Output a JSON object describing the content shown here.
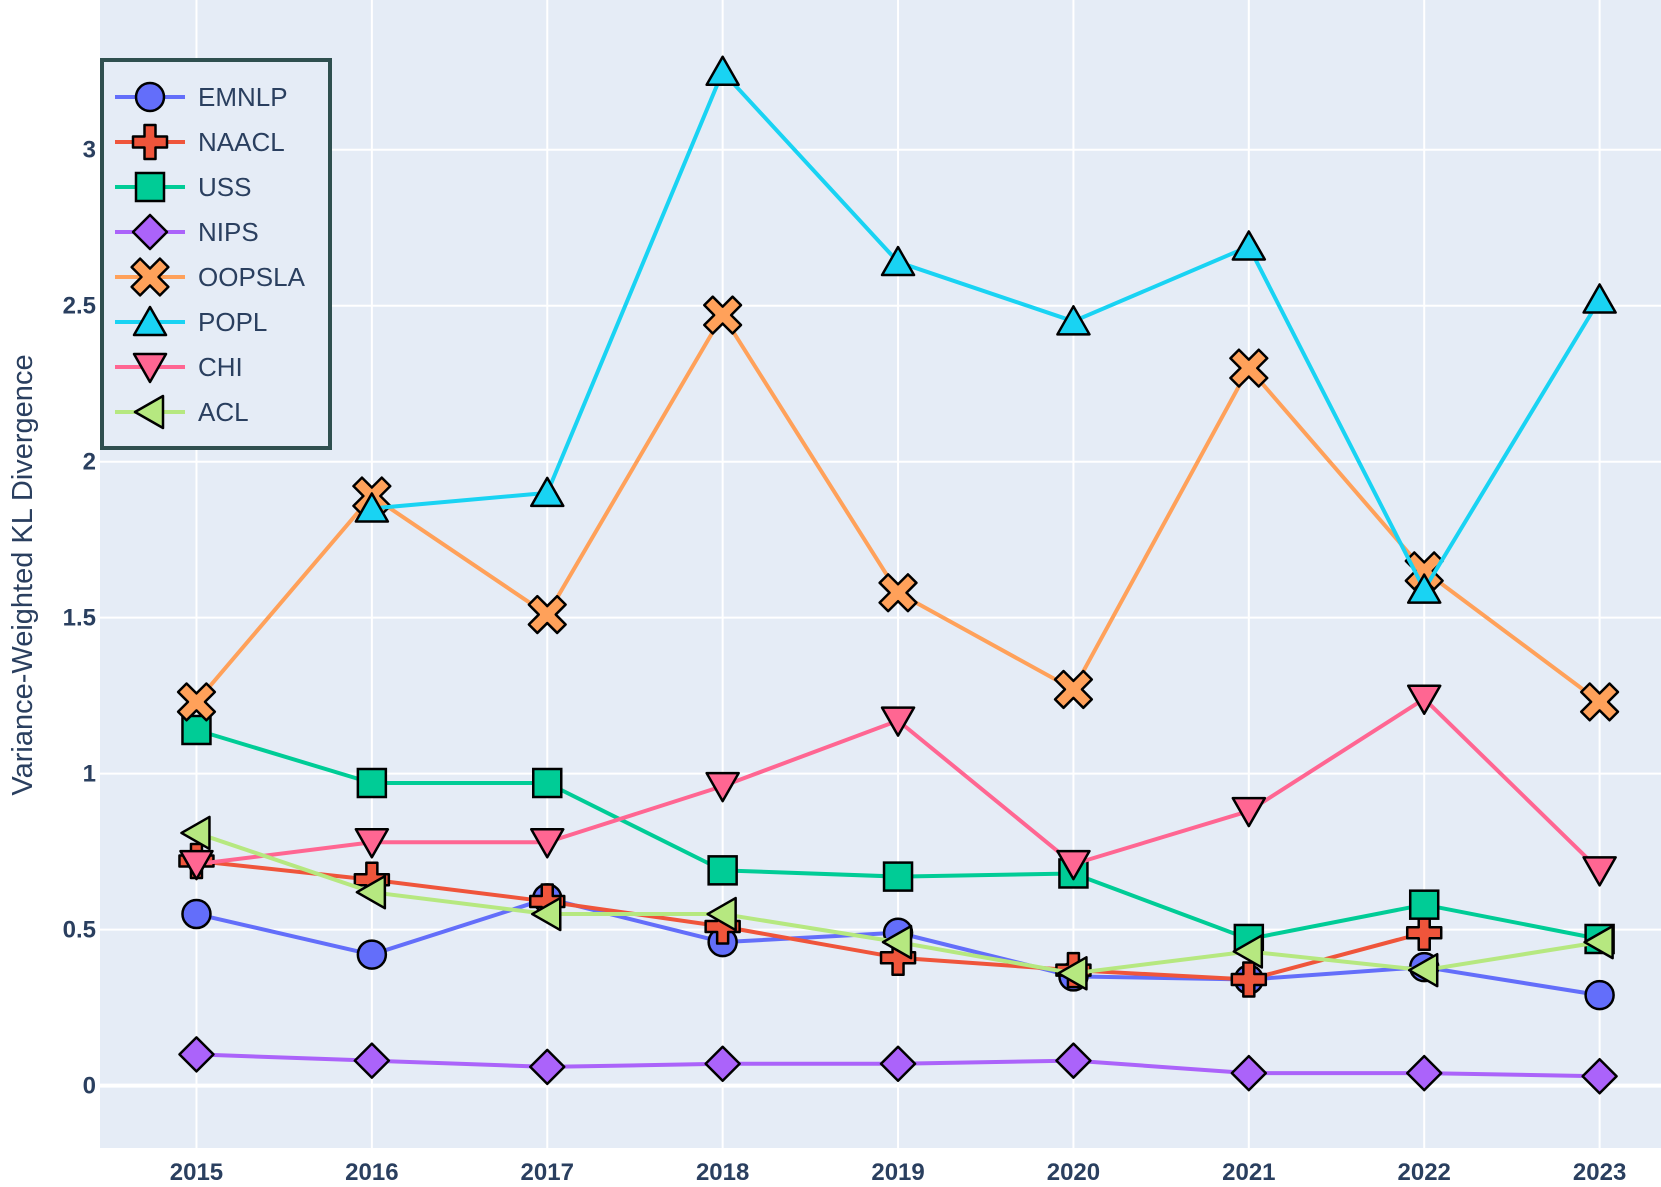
{
  "chart_data": {
    "type": "line",
    "title": "",
    "xlabel": "",
    "ylabel": "Variance-Weighted KL Divergence",
    "x": [
      2015,
      2016,
      2017,
      2018,
      2019,
      2020,
      2021,
      2022,
      2023
    ],
    "x_tick_labels": [
      "2015",
      "2016",
      "2017",
      "2018",
      "2019",
      "2020",
      "2021",
      "2022",
      "2023"
    ],
    "y_ticks": [
      0,
      0.5,
      1,
      1.5,
      2,
      2.5,
      3
    ],
    "y_tick_labels": [
      "0",
      "0.5",
      "1",
      "1.5",
      "2",
      "2.5",
      "3"
    ],
    "xlim": [
      2014.45,
      2023.35
    ],
    "ylim": [
      -0.2,
      3.48
    ],
    "grid": true,
    "legend_position": "top-left",
    "plot_background": "#e5ecf6",
    "series": [
      {
        "name": "EMNLP",
        "color": "#636efa",
        "marker": "circle",
        "values": [
          0.55,
          0.42,
          0.6,
          0.46,
          0.49,
          0.35,
          0.34,
          0.38,
          0.29
        ]
      },
      {
        "name": "NAACL",
        "color": "#ef553b",
        "marker": "cross",
        "values": [
          0.72,
          0.66,
          0.59,
          0.51,
          0.41,
          0.37,
          0.34,
          0.49,
          null
        ]
      },
      {
        "name": "USS",
        "color": "#00cc96",
        "marker": "square",
        "values": [
          1.14,
          0.97,
          0.97,
          0.69,
          0.67,
          0.68,
          0.47,
          0.58,
          0.47
        ]
      },
      {
        "name": "NIPS",
        "color": "#ab63fa",
        "marker": "diamond",
        "values": [
          0.1,
          0.08,
          0.06,
          0.07,
          0.07,
          0.08,
          0.04,
          0.04,
          0.03
        ]
      },
      {
        "name": "OOPSLA",
        "color": "#ffa15a",
        "marker": "x",
        "values": [
          1.23,
          1.89,
          1.51,
          2.47,
          1.58,
          1.27,
          2.3,
          1.65,
          1.23
        ]
      },
      {
        "name": "POPL",
        "color": "#19d3f3",
        "marker": "triangle-up",
        "values": [
          null,
          1.85,
          1.9,
          3.25,
          2.64,
          2.45,
          2.69,
          1.59,
          2.52
        ]
      },
      {
        "name": "CHI",
        "color": "#ff6692",
        "marker": "triangle-down",
        "values": [
          0.71,
          0.78,
          0.78,
          0.96,
          1.17,
          0.71,
          0.88,
          1.24,
          0.69
        ]
      },
      {
        "name": "ACL",
        "color": "#b6e880",
        "marker": "triangle-left",
        "values": [
          0.81,
          0.62,
          0.55,
          0.55,
          0.46,
          0.36,
          0.43,
          0.37,
          0.46
        ]
      }
    ]
  }
}
